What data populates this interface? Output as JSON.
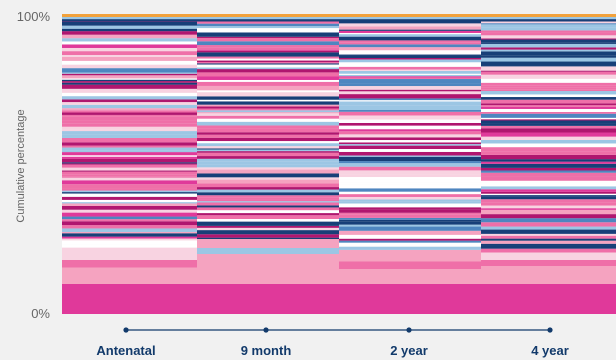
{
  "chart_data": {
    "type": "bar",
    "subtype": "stacked-100-percent",
    "title": "",
    "xlabel": "",
    "ylabel": "Cumulative percentage",
    "ylim": [
      0,
      100
    ],
    "y_ticks": [
      "0%",
      "100%"
    ],
    "grid": false,
    "legend": "none",
    "categories": [
      "Antenatal",
      "9 month",
      "2 year",
      "4 year"
    ],
    "palette": {
      "magenta": "#e0399a",
      "light_pink": "#f5a3c0",
      "pink": "#ef6fa8",
      "pale_pink": "#f8d3e1",
      "light_blue": "#9cc6e4",
      "steel_blue": "#4e86c0",
      "navy": "#173f78",
      "dark_magenta": "#b0166f",
      "white": "#ffffff",
      "orange": "#f2a23c",
      "axis_dark": "#123a6b"
    },
    "series_note": "Each category is a 100% stacked column of many thin colored segments.",
    "segments": [
      {
        "category": "Antenatal",
        "bottom_block": [
          {
            "color": "magenta",
            "value": 10
          },
          {
            "color": "light_pink",
            "value": 5.5
          },
          {
            "color": "pink",
            "value": 2.5
          },
          {
            "color": "pale_pink",
            "value": 3
          }
        ]
      },
      {
        "category": "9 month",
        "bottom_block": [
          {
            "color": "magenta",
            "value": 10
          },
          {
            "color": "light_pink",
            "value": 10
          },
          {
            "color": "light_blue",
            "value": 2
          },
          {
            "color": "light_pink",
            "value": 3
          }
        ]
      },
      {
        "category": "2 year",
        "bottom_block": [
          {
            "color": "magenta",
            "value": 10
          },
          {
            "color": "light_pink",
            "value": 5
          },
          {
            "color": "pink",
            "value": 2.5
          },
          {
            "color": "light_pink",
            "value": 3
          }
        ]
      },
      {
        "category": "4 year",
        "bottom_block": [
          {
            "color": "magenta",
            "value": 10
          },
          {
            "color": "light_pink",
            "value": 6
          },
          {
            "color": "pink",
            "value": 2
          },
          {
            "color": "pale_pink",
            "value": 2.5
          }
        ]
      }
    ]
  }
}
